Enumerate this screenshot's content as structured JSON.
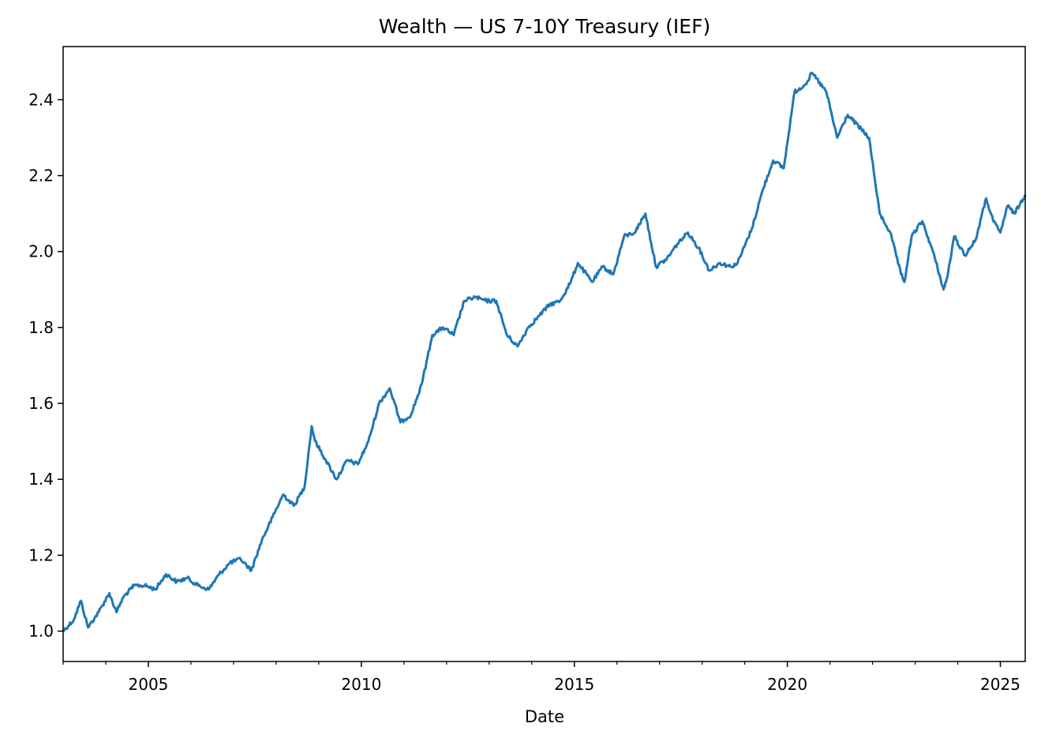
{
  "chart_data": {
    "type": "line",
    "title": "Wealth — US 7-10Y Treasury (IEF)",
    "xlabel": "Date",
    "ylabel": "",
    "xlim": [
      "2003-01",
      "2025-08"
    ],
    "ylim": [
      0.92,
      2.54
    ],
    "x_ticks_major": [
      "2005",
      "2010",
      "2015",
      "2020",
      "2025"
    ],
    "y_ticks": [
      "1.0",
      "1.2",
      "1.4",
      "1.6",
      "1.8",
      "2.0",
      "2.2",
      "2.4"
    ],
    "grid": false,
    "legend": "none",
    "series": [
      {
        "color": "#1f77b4",
        "x": [
          "2003-01",
          "2003-04",
          "2003-06",
          "2003-08",
          "2003-11",
          "2004-02",
          "2004-04",
          "2004-06",
          "2004-09",
          "2004-12",
          "2005-03",
          "2005-06",
          "2005-09",
          "2005-12",
          "2006-03",
          "2006-06",
          "2006-09",
          "2006-12",
          "2007-03",
          "2007-06",
          "2007-09",
          "2007-12",
          "2008-03",
          "2008-06",
          "2008-09",
          "2008-11",
          "2008-12",
          "2009-03",
          "2009-06",
          "2009-09",
          "2009-12",
          "2010-03",
          "2010-06",
          "2010-09",
          "2010-12",
          "2011-03",
          "2011-06",
          "2011-09",
          "2011-12",
          "2012-03",
          "2012-06",
          "2012-09",
          "2012-12",
          "2013-03",
          "2013-06",
          "2013-09",
          "2013-12",
          "2014-03",
          "2014-06",
          "2014-09",
          "2014-12",
          "2015-02",
          "2015-06",
          "2015-09",
          "2015-12",
          "2016-03",
          "2016-06",
          "2016-09",
          "2016-12",
          "2017-03",
          "2017-06",
          "2017-09",
          "2017-12",
          "2018-03",
          "2018-06",
          "2018-09",
          "2018-11",
          "2019-03",
          "2019-06",
          "2019-09",
          "2019-12",
          "2020-03",
          "2020-06",
          "2020-08",
          "2020-12",
          "2021-03",
          "2021-06",
          "2021-09",
          "2021-12",
          "2022-03",
          "2022-06",
          "2022-09",
          "2022-10",
          "2022-12",
          "2023-03",
          "2023-06",
          "2023-09",
          "2023-10",
          "2023-12",
          "2024-03",
          "2024-06",
          "2024-09",
          "2024-11",
          "2025-01",
          "2025-03",
          "2025-05",
          "2025-08"
        ],
        "values": [
          1.0,
          1.03,
          1.08,
          1.01,
          1.05,
          1.1,
          1.05,
          1.09,
          1.12,
          1.12,
          1.11,
          1.15,
          1.13,
          1.14,
          1.12,
          1.11,
          1.15,
          1.18,
          1.19,
          1.16,
          1.24,
          1.3,
          1.36,
          1.33,
          1.38,
          1.54,
          1.5,
          1.45,
          1.4,
          1.45,
          1.44,
          1.5,
          1.6,
          1.64,
          1.55,
          1.57,
          1.65,
          1.78,
          1.8,
          1.78,
          1.87,
          1.88,
          1.87,
          1.87,
          1.78,
          1.75,
          1.8,
          1.83,
          1.86,
          1.87,
          1.92,
          1.97,
          1.92,
          1.96,
          1.94,
          2.04,
          2.05,
          2.1,
          1.96,
          1.98,
          2.02,
          2.05,
          2.01,
          1.95,
          1.97,
          1.96,
          1.97,
          2.06,
          2.16,
          2.24,
          2.22,
          2.42,
          2.44,
          2.47,
          2.42,
          2.3,
          2.36,
          2.33,
          2.3,
          2.1,
          2.05,
          1.94,
          1.92,
          2.04,
          2.08,
          2.0,
          1.9,
          1.93,
          2.04,
          1.99,
          2.03,
          2.14,
          2.08,
          2.05,
          2.12,
          2.1,
          2.15
        ]
      }
    ]
  }
}
